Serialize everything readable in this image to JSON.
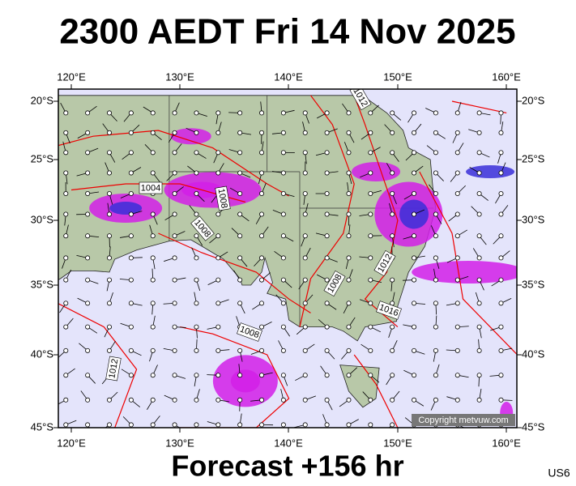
{
  "header": {
    "title": "2300 AEDT Fri 14 Nov 2025"
  },
  "axes": {
    "top_labels": [
      "120°E",
      "130°E",
      "140°E",
      "150°E",
      "160°E"
    ],
    "bottom_labels": [
      "120°E",
      "130°E",
      "140°E",
      "150°E",
      "160°E"
    ],
    "left_labels": [
      "20°S",
      "25°S",
      "30°S",
      "35°S",
      "40°S",
      "45°S"
    ],
    "right_labels": [
      "20°S",
      "25°S",
      "30°S",
      "35°S",
      "40°S",
      "45°S"
    ]
  },
  "isobar_labels": [
    "1004",
    "1008",
    "1008",
    "1012",
    "1012",
    "1008",
    "1016",
    "1008",
    "1012"
  ],
  "copyright": "Copyright metvuw.com",
  "footer": {
    "forecast": "Forecast +156 hr",
    "code": "US6"
  }
}
